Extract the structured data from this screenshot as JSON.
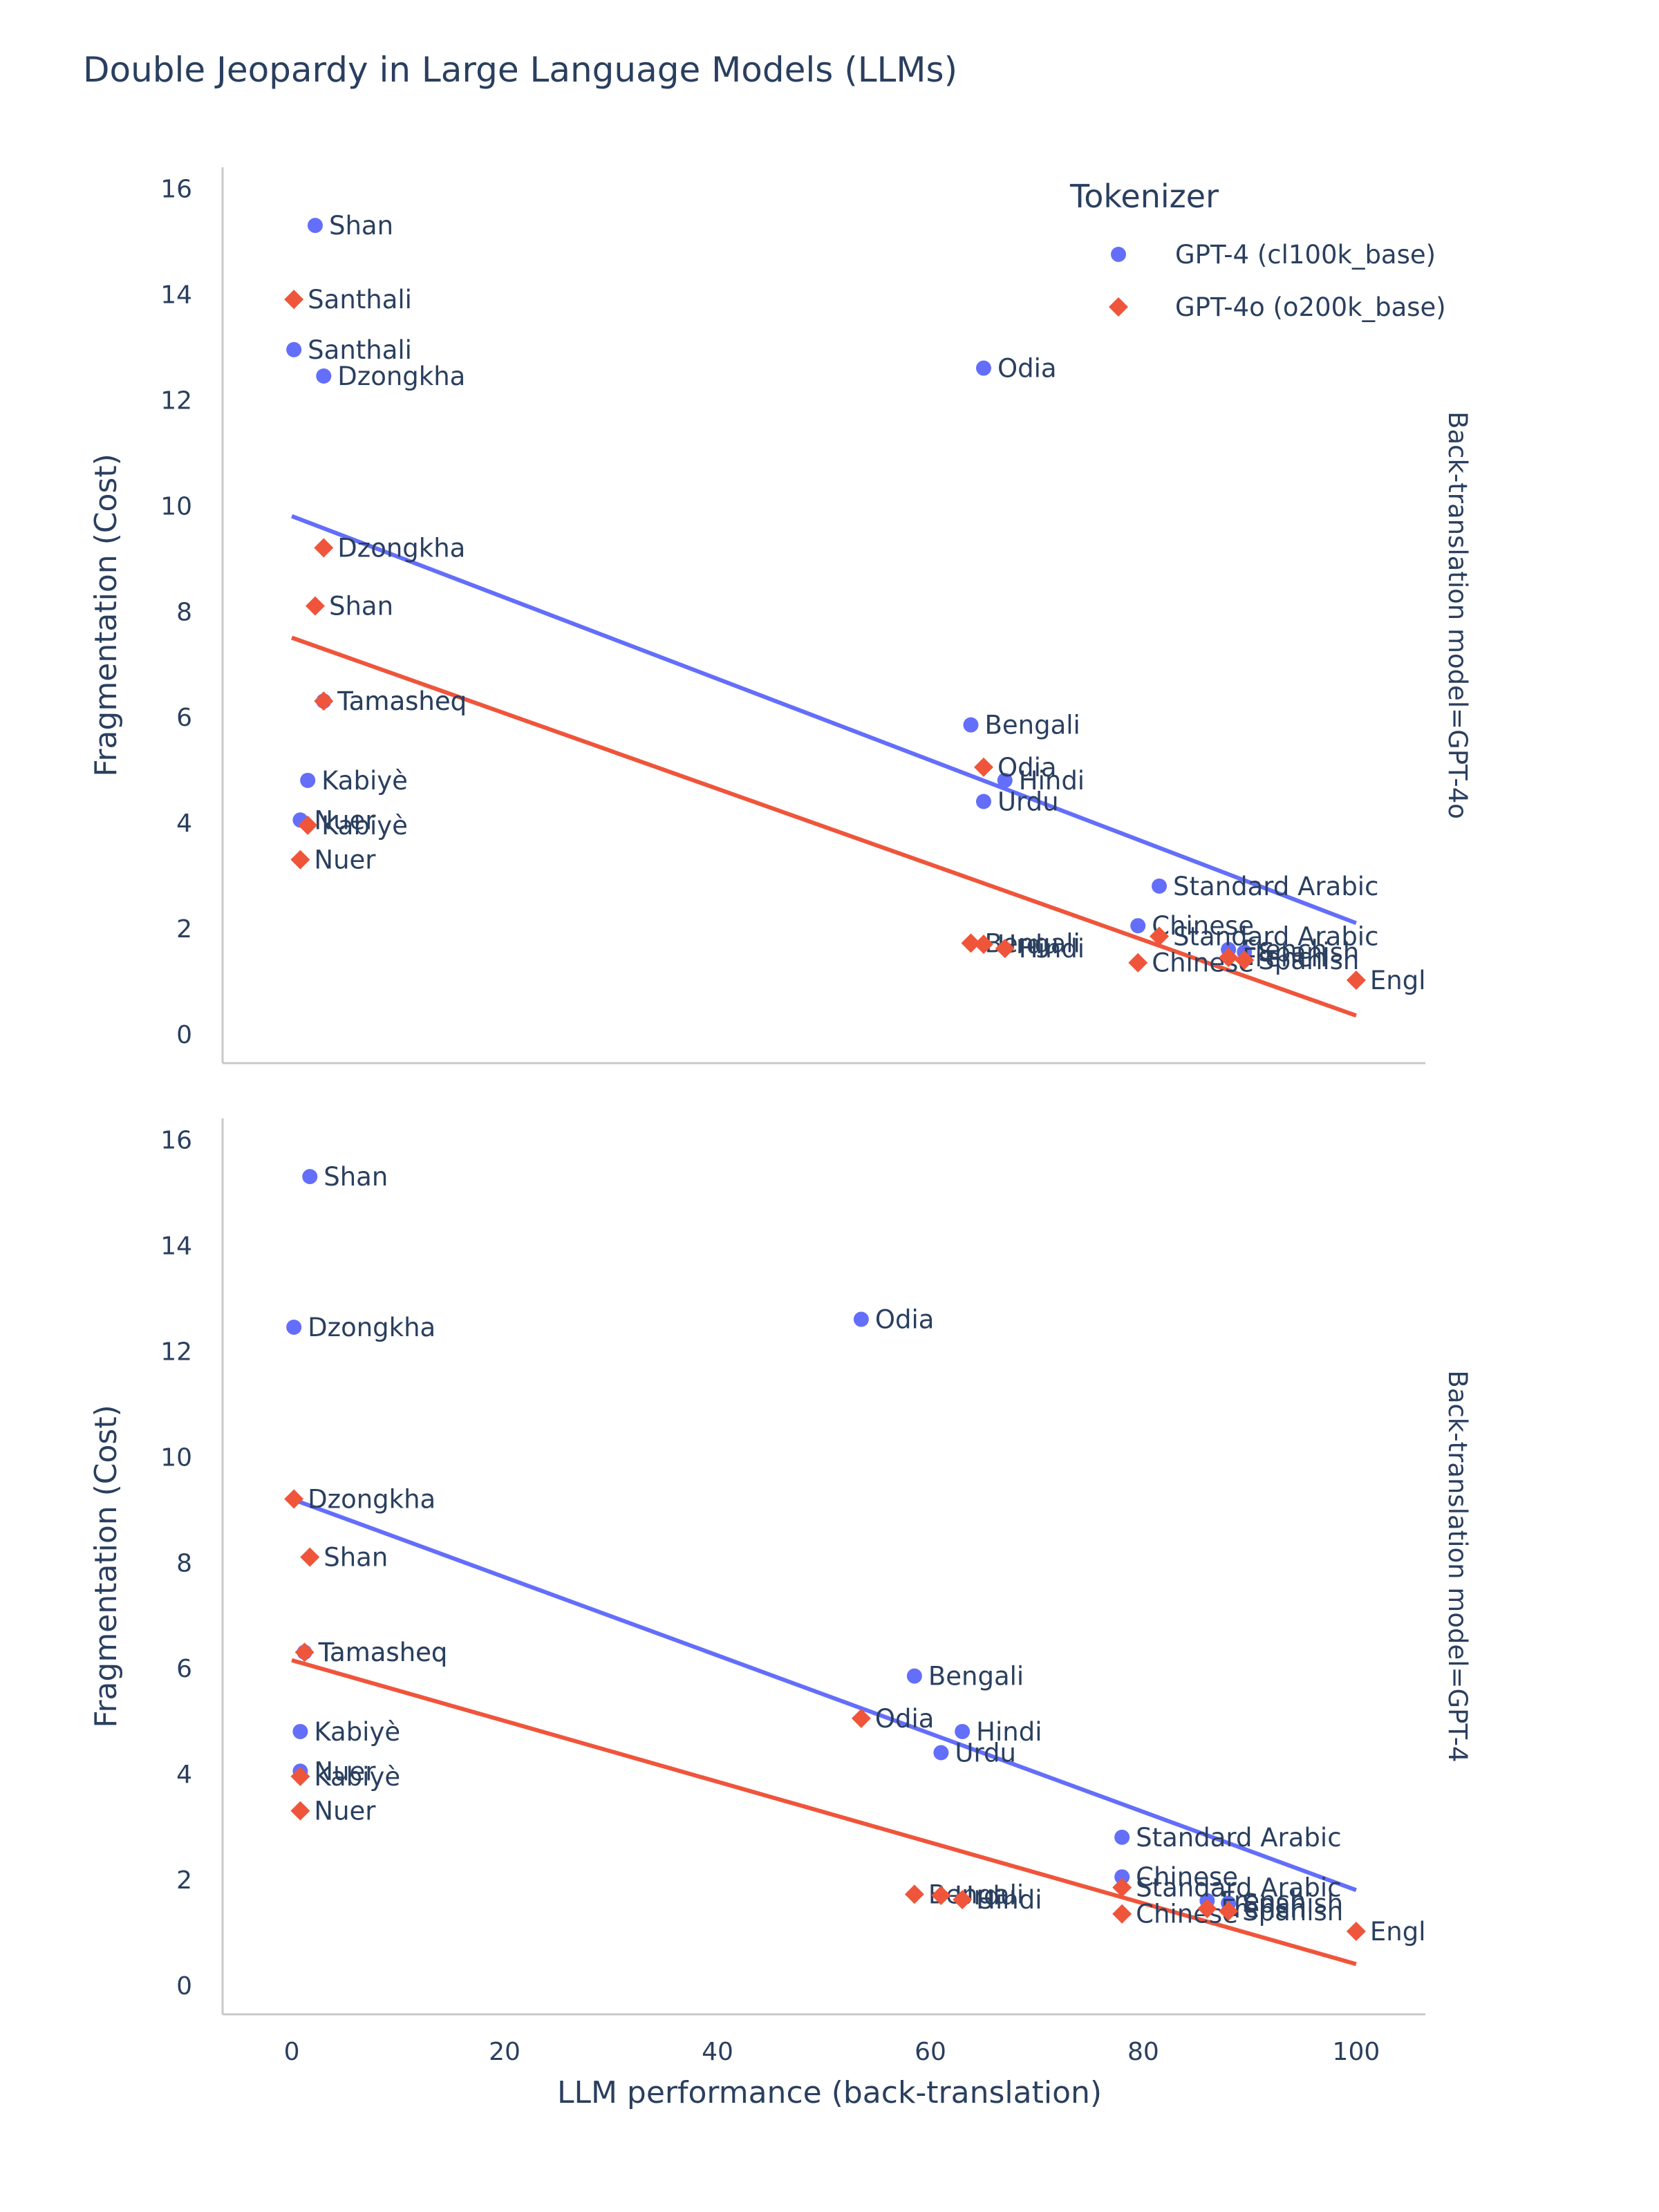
{
  "chart_data": {
    "type": "scatter",
    "title": "Double Jeopardy in Large Language Models (LLMs)",
    "xlabel": "LLM performance (back-translation)",
    "ylabel": "Fragmentation (Cost)",
    "xlim": [
      -6.5,
      106.5
    ],
    "ylim": [
      -0.55,
      16.4
    ],
    "x_ticks": [
      0,
      20,
      40,
      60,
      80,
      100
    ],
    "y_ticks": [
      0,
      2,
      4,
      6,
      8,
      10,
      12,
      14,
      16
    ],
    "legend": {
      "title": "Tokenizer",
      "position": "top-right",
      "items": [
        {
          "name": "GPT-4 (cl100k_base)",
          "color": "#636efa",
          "symbol": "circle"
        },
        {
          "name": "GPT-4o (o200k_base)",
          "color": "#ef553b",
          "symbol": "diamond"
        }
      ]
    },
    "facets": [
      {
        "label": "Back-translation model=GPT-4o",
        "series": [
          {
            "name": "GPT-4 (cl100k_base)",
            "color": "#636efa",
            "symbol": "circle",
            "trend": [
              [
                0,
                9.8
              ],
              [
                100,
                2.1
              ]
            ],
            "points": [
              {
                "label": "Shan",
                "x": 2.2,
                "y": 15.3
              },
              {
                "label": "Santhali",
                "x": 0.2,
                "y": 12.95
              },
              {
                "label": "Dzongkha",
                "x": 3.0,
                "y": 12.45
              },
              {
                "label": "Odia",
                "x": 65.0,
                "y": 12.6
              },
              {
                "label": "Tamasheq",
                "x": 3.0,
                "y": 6.3
              },
              {
                "label": "Kabiyè",
                "x": 1.5,
                "y": 4.8
              },
              {
                "label": "Nuer",
                "x": 0.8,
                "y": 4.05
              },
              {
                "label": "Bengali",
                "x": 63.8,
                "y": 5.85
              },
              {
                "label": "Hindi",
                "x": 67.0,
                "y": 4.8
              },
              {
                "label": "Urdu",
                "x": 65.0,
                "y": 4.4
              },
              {
                "label": "Standard Arabic",
                "x": 81.5,
                "y": 2.8
              },
              {
                "label": "Chinese",
                "x": 79.5,
                "y": 2.05
              },
              {
                "label": "French",
                "x": 88.0,
                "y": 1.6
              },
              {
                "label": "Spanish",
                "x": 89.5,
                "y": 1.55
              }
            ]
          },
          {
            "name": "GPT-4o (o200k_base)",
            "color": "#ef553b",
            "symbol": "diamond",
            "trend": [
              [
                0,
                7.5
              ],
              [
                100,
                0.35
              ]
            ],
            "points": [
              {
                "label": "Santhali",
                "x": 0.2,
                "y": 13.9
              },
              {
                "label": "Dzongkha",
                "x": 3.0,
                "y": 9.2
              },
              {
                "label": "Shan",
                "x": 2.2,
                "y": 8.1
              },
              {
                "label": "Tamasheq",
                "x": 3.0,
                "y": 6.3
              },
              {
                "label": "Kabiyè",
                "x": 1.5,
                "y": 3.95
              },
              {
                "label": "Nuer",
                "x": 0.8,
                "y": 3.3
              },
              {
                "label": "Odia",
                "x": 65.0,
                "y": 5.05
              },
              {
                "label": "Bengali",
                "x": 63.8,
                "y": 1.72
              },
              {
                "label": "Urdu",
                "x": 65.0,
                "y": 1.7
              },
              {
                "label": "Hindi",
                "x": 67.0,
                "y": 1.62
              },
              {
                "label": "Standard Arabic",
                "x": 81.5,
                "y": 1.85
              },
              {
                "label": "Chinese",
                "x": 79.5,
                "y": 1.35
              },
              {
                "label": "French",
                "x": 88.0,
                "y": 1.45
              },
              {
                "label": "Spanish",
                "x": 89.5,
                "y": 1.4
              },
              {
                "label": "Engl",
                "x": 100.0,
                "y": 1.02
              }
            ]
          }
        ]
      },
      {
        "label": "Back-translation model=GPT-4",
        "series": [
          {
            "name": "GPT-4 (cl100k_base)",
            "color": "#636efa",
            "symbol": "circle",
            "trend": [
              [
                0,
                9.2
              ],
              [
                100,
                1.8
              ]
            ],
            "points": [
              {
                "label": "Shan",
                "x": 1.7,
                "y": 15.3
              },
              {
                "label": "Dzongkha",
                "x": 0.2,
                "y": 12.45
              },
              {
                "label": "Odia",
                "x": 53.5,
                "y": 12.6
              },
              {
                "label": "Tamasheq",
                "x": 1.2,
                "y": 6.3
              },
              {
                "label": "Kabiyè",
                "x": 0.8,
                "y": 4.8
              },
              {
                "label": "Nuer",
                "x": 0.8,
                "y": 4.05
              },
              {
                "label": "Bengali",
                "x": 58.5,
                "y": 5.85
              },
              {
                "label": "Hindi",
                "x": 63.0,
                "y": 4.8
              },
              {
                "label": "Urdu",
                "x": 61.0,
                "y": 4.4
              },
              {
                "label": "Standard Arabic",
                "x": 78.0,
                "y": 2.8
              },
              {
                "label": "Chinese",
                "x": 78.0,
                "y": 2.05
              },
              {
                "label": "French",
                "x": 86.0,
                "y": 1.6
              },
              {
                "label": "Spanish",
                "x": 88.0,
                "y": 1.55
              }
            ]
          },
          {
            "name": "GPT-4o (o200k_base)",
            "color": "#ef553b",
            "symbol": "diamond",
            "trend": [
              [
                0,
                6.15
              ],
              [
                100,
                0.4
              ]
            ],
            "points": [
              {
                "label": "Dzongkha",
                "x": 0.2,
                "y": 9.2
              },
              {
                "label": "Shan",
                "x": 1.7,
                "y": 8.1
              },
              {
                "label": "Tamasheq",
                "x": 1.2,
                "y": 6.3
              },
              {
                "label": "Kabiyè",
                "x": 0.8,
                "y": 3.95
              },
              {
                "label": "Nuer",
                "x": 0.8,
                "y": 3.3
              },
              {
                "label": "Odia",
                "x": 53.5,
                "y": 5.05
              },
              {
                "label": "Bengali",
                "x": 58.5,
                "y": 1.72
              },
              {
                "label": "Urdu",
                "x": 61.0,
                "y": 1.7
              },
              {
                "label": "Hindi",
                "x": 63.0,
                "y": 1.62
              },
              {
                "label": "Standard Arabic",
                "x": 78.0,
                "y": 1.85
              },
              {
                "label": "Chinese",
                "x": 78.0,
                "y": 1.35
              },
              {
                "label": "French",
                "x": 86.0,
                "y": 1.45
              },
              {
                "label": "Spanish",
                "x": 88.0,
                "y": 1.4
              },
              {
                "label": "Engl",
                "x": 100.0,
                "y": 1.02
              }
            ]
          }
        ]
      }
    ]
  }
}
